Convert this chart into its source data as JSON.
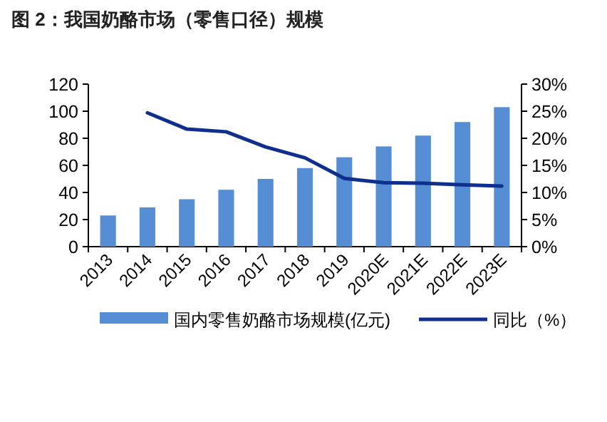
{
  "chart_data": {
    "type": "bar",
    "title": "图 2：我国奶酪市场（零售口径）规模",
    "categories": [
      "2013",
      "2014",
      "2015",
      "2016",
      "2017",
      "2018",
      "2019",
      "2020E",
      "2021E",
      "2022E",
      "2023E"
    ],
    "series": [
      {
        "name": "国内零售奶酪市场规模(亿元)",
        "color": "#558ed5",
        "values": [
          23,
          29,
          35,
          42,
          50,
          58,
          66,
          74,
          82,
          92,
          103
        ]
      },
      {
        "name": "同比（%）",
        "type": "line",
        "axis": "y2",
        "color": "#0f2f8f",
        "values": [
          null,
          24.7,
          21.7,
          21.2,
          18.4,
          16.4,
          12.6,
          11.8,
          11.7,
          11.4,
          11.2
        ]
      }
    ],
    "ylim": [
      0,
      120
    ],
    "yticks": [
      0,
      20,
      40,
      60,
      80,
      100,
      120
    ],
    "y2lim": [
      0,
      30
    ],
    "y2ticks": [
      {
        "value": 0,
        "label": "0%"
      },
      {
        "value": 5,
        "label": "5%"
      },
      {
        "value": 10,
        "label": "10%"
      },
      {
        "value": 15,
        "label": "15%"
      },
      {
        "value": 20,
        "label": "20%"
      },
      {
        "value": 25,
        "label": "25%"
      },
      {
        "value": 30,
        "label": "30%"
      }
    ],
    "grid": false,
    "legend": "bottom"
  }
}
